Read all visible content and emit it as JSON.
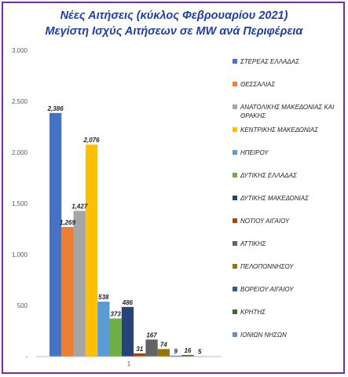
{
  "chart_data": {
    "type": "bar",
    "title": "Νέες Αιτήσεις  (κύκλος Φεβρουαρίου 2021)",
    "subtitle": "Μεγίστη Ισχύς Αιτήσεων σε MW ανά Περιφέρεια",
    "categories": [
      "1"
    ],
    "ylim": [
      0,
      3000
    ],
    "yticks": [
      0,
      500,
      1000,
      1500,
      2000,
      2500,
      3000
    ],
    "ytick_labels": [
      "-",
      "500",
      "1,000",
      "1,500",
      "2,000",
      "2,500",
      "3,000"
    ],
    "grid": false,
    "legend_position": "right",
    "series": [
      {
        "name": "ΣΤΕΡΕΑΣ ΕΛΛΑΔΑΣ",
        "value": 2386,
        "label": "2,386",
        "color": "#4472c4"
      },
      {
        "name": "ΘΕΣΣΑΛΙΑΣ",
        "value": 1269,
        "label": "1,269",
        "color": "#ed7d31"
      },
      {
        "name": "ΑΝΑΤΟΛΙΚΗΣ ΜΑΚΕΔΟΝΙΑΣ ΚΑΙ ΘΡΑΚΗΣ",
        "value": 1427,
        "label": "1,427",
        "color": "#a5a5a5"
      },
      {
        "name": "ΚΕΝΤΡΙΚΗΣ ΜΑΚΕΔΟΝΙΑΣ",
        "value": 2076,
        "label": "2,076",
        "color": "#ffc000"
      },
      {
        "name": "ΗΠΕΙΡΟΥ",
        "value": 538,
        "label": "538",
        "color": "#5b9bd5"
      },
      {
        "name": "ΔΥΤΙΚΗΣ ΕΛΛΑΔΑΣ",
        "value": 373,
        "label": "373",
        "color": "#70ad47"
      },
      {
        "name": "ΔΥΤΙΚΗΣ ΜΑΚΕΔΟΝΙΑΣ",
        "value": 486,
        "label": "486",
        "color": "#264478"
      },
      {
        "name": "ΝΟΤΙΟΥ ΑΙΓΑΙΟΥ",
        "value": 31,
        "label": "31",
        "color": "#9e480e"
      },
      {
        "name": "ΑΤΤΙΚΗΣ",
        "value": 167,
        "label": "167",
        "color": "#636363"
      },
      {
        "name": "ΠΕΛΟΠΟΝΝΗΣΟΥ",
        "value": 74,
        "label": "74",
        "color": "#997300"
      },
      {
        "name": "ΒΟΡΕΙΟΥ ΑΙΓΑΙΟΥ",
        "value": 9,
        "label": "9",
        "color": "#255e91"
      },
      {
        "name": "ΚΡΗΤΗΣ",
        "value": 16,
        "label": "16",
        "color": "#43682b"
      },
      {
        "name": "ΙΟΝΙΩΝ ΝΗΣΩΝ",
        "value": 5,
        "label": "5",
        "color": "#698ed0"
      }
    ]
  },
  "colors": {
    "title": "#1f3fa8",
    "border": "#7030a0",
    "axis": "#bfbfbf"
  }
}
